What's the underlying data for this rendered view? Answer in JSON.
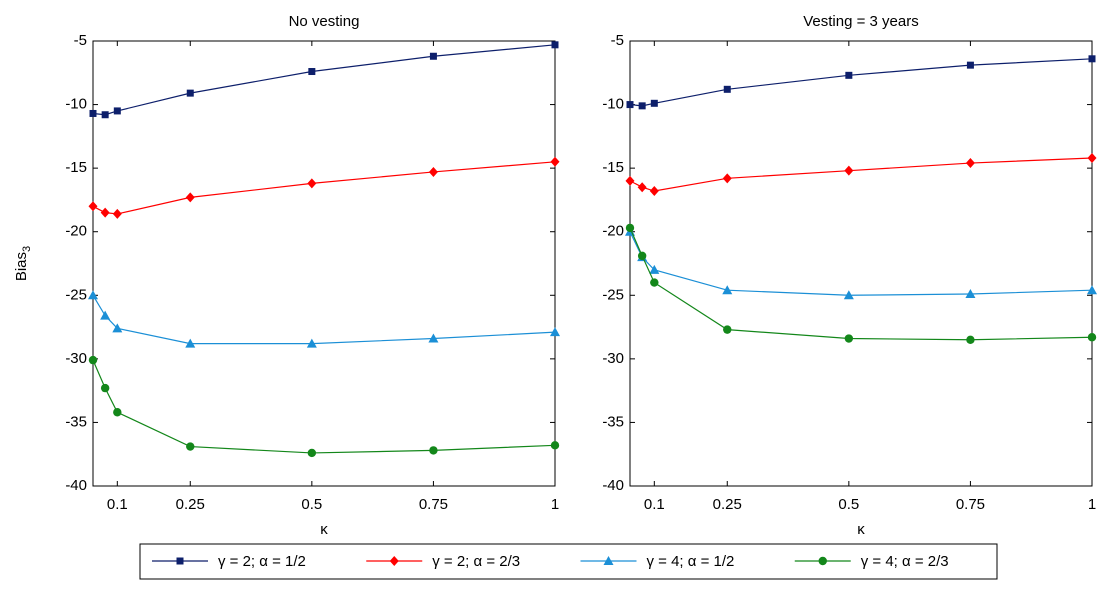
{
  "chart_data": [
    {
      "type": "line",
      "title": "No vesting",
      "xlabel": "κ",
      "ylabel": "Bias",
      "ylabel_subscript": "3",
      "x": [
        0.05,
        0.075,
        0.1,
        0.25,
        0.5,
        0.75,
        1
      ],
      "xlim": [
        0.05,
        1
      ],
      "xticks": [
        0.1,
        0.25,
        0.5,
        0.75,
        1
      ],
      "ylim": [
        -40,
        -5
      ],
      "yticks": [
        -40,
        -35,
        -30,
        -25,
        -20,
        -15,
        -10,
        -5
      ],
      "series": [
        {
          "name": "γ = 2; α = 1/2",
          "color": "#0d1f6b",
          "marker": "square",
          "values": [
            -10.7,
            -10.8,
            -10.5,
            -9.1,
            -7.4,
            -6.2,
            -5.3
          ]
        },
        {
          "name": "γ = 2; α = 2/3",
          "color": "#ff0000",
          "marker": "diamond",
          "values": [
            -18.0,
            -18.5,
            -18.6,
            -17.3,
            -16.2,
            -15.3,
            -14.5
          ]
        },
        {
          "name": "γ = 4; α = 1/2",
          "color": "#1b8fd6",
          "marker": "triangle",
          "values": [
            -25.0,
            -26.6,
            -27.6,
            -28.8,
            -28.8,
            -28.4,
            -27.9
          ]
        },
        {
          "name": "γ = 4; α = 2/3",
          "color": "#13871a",
          "marker": "circle",
          "values": [
            -30.1,
            -32.3,
            -34.2,
            -36.9,
            -37.4,
            -37.2,
            -36.8
          ]
        }
      ]
    },
    {
      "type": "line",
      "title": "Vesting = 3 years",
      "xlabel": "κ",
      "x": [
        0.05,
        0.075,
        0.1,
        0.25,
        0.5,
        0.75,
        1
      ],
      "xlim": [
        0.05,
        1
      ],
      "xticks": [
        0.1,
        0.25,
        0.5,
        0.75,
        1
      ],
      "ylim": [
        -40,
        -5
      ],
      "yticks": [
        -40,
        -35,
        -30,
        -25,
        -20,
        -15,
        -10,
        -5
      ],
      "series": [
        {
          "color": "#0d1f6b",
          "marker": "square",
          "values": [
            -10.0,
            -10.1,
            -9.9,
            -8.8,
            -7.7,
            -6.9,
            -6.4
          ]
        },
        {
          "color": "#ff0000",
          "marker": "diamond",
          "values": [
            -16.0,
            -16.5,
            -16.8,
            -15.8,
            -15.2,
            -14.6,
            -14.2
          ]
        },
        {
          "color": "#1b8fd6",
          "marker": "triangle",
          "values": [
            -20.0,
            -22.0,
            -23.0,
            -24.6,
            -25.0,
            -24.9,
            -24.6
          ]
        },
        {
          "color": "#13871a",
          "marker": "circle",
          "values": [
            -19.7,
            -21.9,
            -24.0,
            -27.7,
            -28.4,
            -28.5,
            -28.3
          ]
        }
      ]
    }
  ]
}
